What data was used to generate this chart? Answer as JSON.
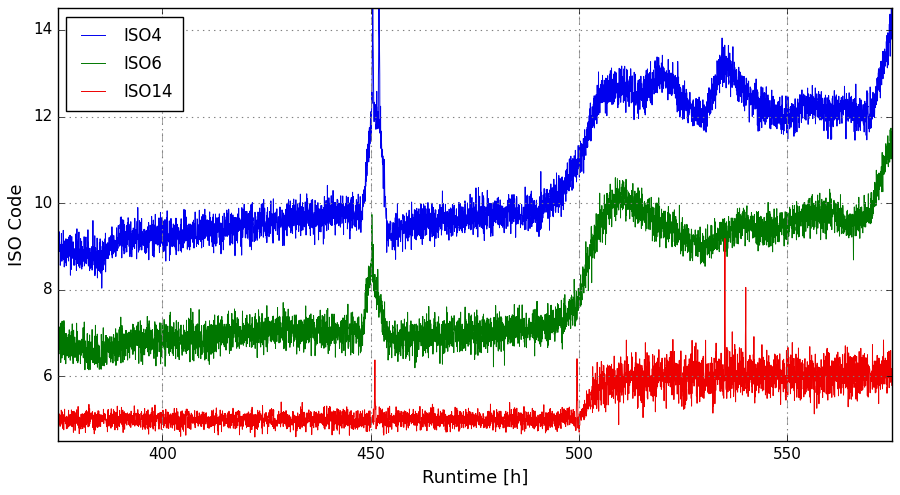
{
  "title": "",
  "xlabel": "Runtime [h]",
  "ylabel": "ISO Code",
  "xlim": [
    375,
    575
  ],
  "ylim": [
    4.5,
    14.5
  ],
  "yticks": [
    6,
    8,
    10,
    12,
    14
  ],
  "xticks": [
    400,
    450,
    500,
    550
  ],
  "grid_color": "#b0b0b0",
  "background_color": "#ffffff",
  "legend_labels": [
    "ISO4",
    "ISO6",
    "ISO14"
  ],
  "line_colors": [
    "#0000ee",
    "#007700",
    "#ee0000"
  ],
  "line_width": 0.7,
  "seed": 42,
  "x_start": 375,
  "x_end": 575,
  "n_points": 5000,
  "figsize": [
    9.0,
    4.95
  ],
  "dpi": 100
}
